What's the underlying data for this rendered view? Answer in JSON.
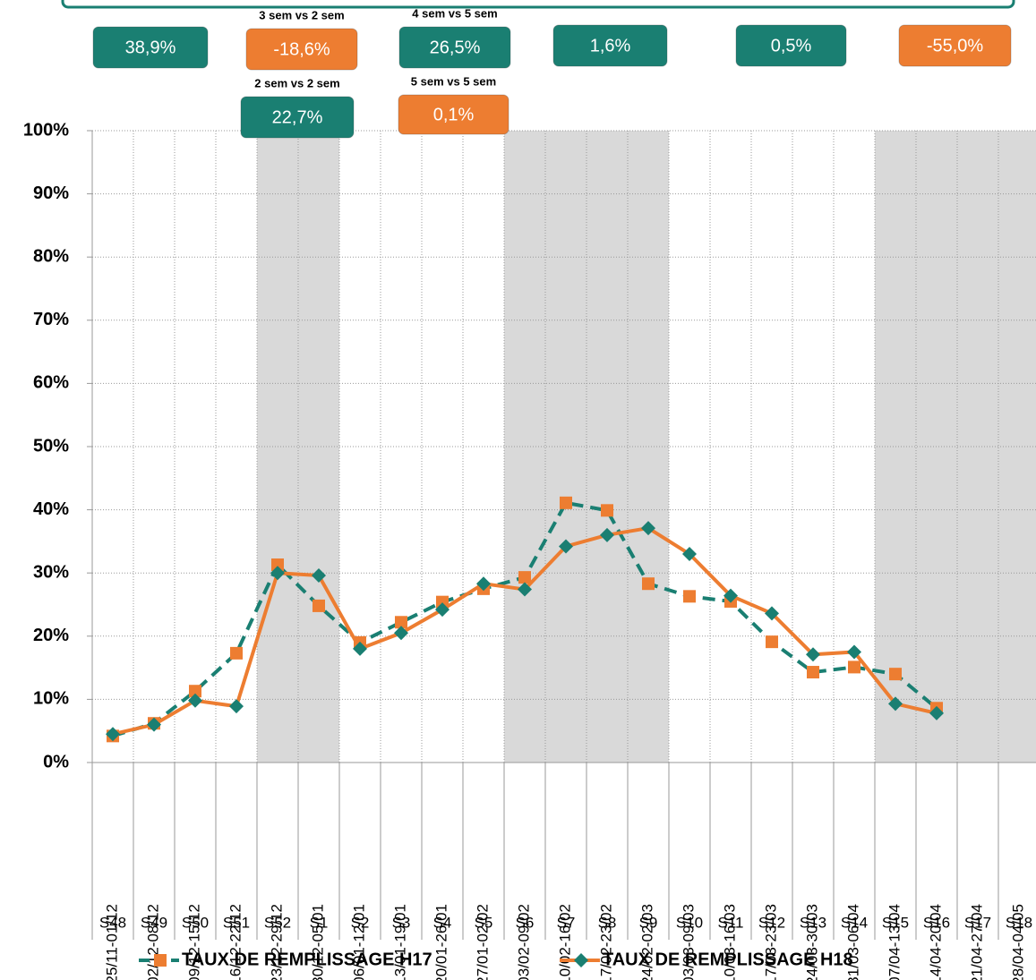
{
  "chart_data": {
    "type": "line",
    "categories": [
      "25/11-01/12",
      "02/12-08/12",
      "09/12-15/12",
      "16/12-22/12",
      "23/12-29/12",
      "30/12-05/01",
      "06/01-12/01",
      "13/01-19/01",
      "20/01-26/01",
      "27/01-02/02",
      "03/02-09/02",
      "10/02-16/02",
      "17/02-23/02",
      "24/02-02/03",
      "03/03-09/03",
      "10/03-16/03",
      "17/03-23/03",
      "24/03-30/03",
      "31/03-06/04",
      "07/04-13/04",
      "14/04-20/04",
      "21/04-27/04",
      "28/04-04/05"
    ],
    "weeks": [
      "S48",
      "S49",
      "S50",
      "S51",
      "S52",
      "S1",
      "S2",
      "S3",
      "S4",
      "S5",
      "S6",
      "S7",
      "S8",
      "S9",
      "S10",
      "S11",
      "S12",
      "S13",
      "S14",
      "S15",
      "S16",
      "S17",
      "S18"
    ],
    "series": [
      {
        "name": "TAUX DE REMPLISSAGE H17",
        "color": "#1a7f72",
        "marker_color": "#ed7d31",
        "marker": "square",
        "dashed": true,
        "values": [
          4.2,
          6.2,
          11.3,
          17.3,
          31.3,
          24.8,
          19.0,
          22.2,
          25.4,
          27.5,
          29.3,
          41.1,
          39.9,
          28.3,
          26.3,
          25.5,
          19.1,
          14.3,
          15.1,
          14.0,
          8.6,
          null,
          null
        ]
      },
      {
        "name": "TAUX DE REMPLISSAGE H18",
        "color": "#ed7d31",
        "marker_color": "#1a7f72",
        "marker": "diamond",
        "dashed": false,
        "values": [
          4.5,
          6.0,
          9.8,
          8.9,
          30.0,
          29.6,
          18.0,
          20.5,
          24.2,
          28.3,
          27.4,
          34.2,
          36.0,
          37.1,
          33.0,
          26.4,
          23.6,
          17.1,
          17.5,
          9.3,
          7.8,
          null,
          null
        ]
      }
    ],
    "ylim": [
      0,
      100
    ],
    "yticks": [
      {
        "value": 0,
        "label": "0%"
      },
      {
        "value": 10,
        "label": "10%"
      },
      {
        "value": 20,
        "label": "20%"
      },
      {
        "value": 30,
        "label": "30%"
      },
      {
        "value": 40,
        "label": "40%"
      },
      {
        "value": 50,
        "label": "50%"
      },
      {
        "value": 60,
        "label": "60%"
      },
      {
        "value": 70,
        "label": "70%"
      },
      {
        "value": 80,
        "label": "80%"
      },
      {
        "value": 90,
        "label": "90%"
      },
      {
        "value": 100,
        "label": "100%"
      }
    ],
    "grid": true,
    "shaded_categories": [
      [
        4,
        5
      ],
      [
        10,
        13
      ],
      [
        19,
        22
      ]
    ],
    "annotations": [
      {
        "text": "38,9%",
        "color": "#1a7f72"
      },
      {
        "text": "-18,6%",
        "caption": "3 sem vs 2 sem",
        "color": "#ed7d31"
      },
      {
        "text": "26,5%",
        "caption": "4 sem vs 5 sem",
        "color": "#1a7f72"
      },
      {
        "text": "1,6%",
        "color": "#1a7f72"
      },
      {
        "text": "0,5%",
        "color": "#1a7f72"
      },
      {
        "text": "-55,0%",
        "color": "#ed7d31"
      },
      {
        "text": "22,7%",
        "caption": "2 sem vs 2 sem",
        "color": "#1a7f72"
      },
      {
        "text": "0,1%",
        "caption": "5 sem vs 5 sem",
        "color": "#ed7d31"
      }
    ]
  }
}
